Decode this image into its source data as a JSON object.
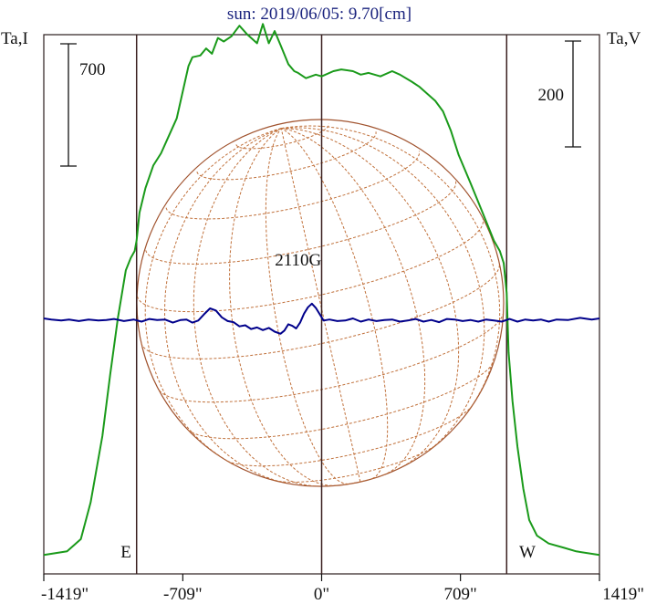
{
  "chart_data": {
    "type": "line",
    "title": "sun: 2019/06/05: 9.70[cm]",
    "left_axis_label": "Ta,I",
    "right_axis_label": "Ta,V",
    "x_unit": "arcsec",
    "xlim": [
      -1419,
      1419
    ],
    "x_ticks": [
      -1419,
      -709,
      0,
      709,
      1419
    ],
    "x_tick_labels": [
      "-1419\"",
      "-709\"",
      "0\"",
      "709\"",
      "1419\""
    ],
    "limb_labels": [
      "E",
      "W"
    ],
    "limb_positions": [
      -945,
      945
    ],
    "scale_bars": [
      {
        "label": "700",
        "side": "left",
        "value": 700
      },
      {
        "label": "200",
        "side": "right",
        "value": 200
      }
    ],
    "annotations": [
      {
        "text": "2110G",
        "x": -120
      }
    ],
    "colors": {
      "title": "#1a237e",
      "intensity": "#1a9a1a",
      "polarization": "#00008b",
      "disk": "#a0522d",
      "frame": "#2b1d1d",
      "limb_lines": "#3a2020"
    },
    "series": [
      {
        "name": "I",
        "axis": "left",
        "x": [
          -1419,
          -1300,
          -1230,
          -1180,
          -1120,
          -1080,
          -1040,
          -1000,
          -975,
          -955,
          -945,
          -930,
          -900,
          -860,
          -820,
          -780,
          -740,
          -700,
          -680,
          -660,
          -620,
          -590,
          -560,
          -530,
          -500,
          -460,
          -420,
          -380,
          -330,
          -300,
          -270,
          -240,
          -210,
          -170,
          -140,
          -120,
          -80,
          -30,
          0,
          60,
          100,
          160,
          200,
          240,
          300,
          360,
          400,
          460,
          500,
          540,
          580,
          620,
          660,
          700,
          760,
          800,
          840,
          880,
          910,
          930,
          945,
          955,
          975,
          1000,
          1030,
          1060,
          1100,
          1160,
          1240,
          1300,
          1419
        ],
        "y": [
          20,
          40,
          110,
          320,
          700,
          1050,
          1380,
          1650,
          1720,
          1760,
          1820,
          1980,
          2120,
          2250,
          2320,
          2420,
          2520,
          2720,
          2820,
          2870,
          2880,
          2920,
          2890,
          2980,
          2960,
          2990,
          3050,
          3000,
          2950,
          3060,
          2950,
          3020,
          2940,
          2830,
          2790,
          2780,
          2750,
          2770,
          2760,
          2790,
          2800,
          2790,
          2770,
          2780,
          2760,
          2790,
          2770,
          2730,
          2700,
          2660,
          2620,
          2560,
          2450,
          2310,
          2150,
          2040,
          1930,
          1820,
          1760,
          1690,
          1520,
          1180,
          900,
          640,
          400,
          220,
          130,
          85,
          60,
          40,
          20
        ]
      },
      {
        "name": "V",
        "axis": "right",
        "x": [
          -1419,
          -1380,
          -1330,
          -1290,
          -1240,
          -1190,
          -1140,
          -1100,
          -1060,
          -1010,
          -960,
          -920,
          -880,
          -840,
          -800,
          -760,
          -720,
          -690,
          -660,
          -630,
          -600,
          -570,
          -540,
          -510,
          -480,
          -450,
          -420,
          -390,
          -360,
          -330,
          -300,
          -270,
          -240,
          -210,
          -190,
          -170,
          -150,
          -130,
          -110,
          -90,
          -70,
          -50,
          -30,
          -10,
          10,
          40,
          80,
          120,
          160,
          200,
          240,
          280,
          320,
          360,
          400,
          440,
          480,
          520,
          560,
          600,
          640,
          680,
          720,
          760,
          800,
          840,
          880,
          920,
          960,
          1000,
          1040,
          1080,
          1120,
          1160,
          1200,
          1260,
          1320,
          1380,
          1419
        ],
        "y": [
          0,
          -2,
          -4,
          -2,
          -5,
          -2,
          -4,
          -3,
          -1,
          -5,
          -2,
          -6,
          -1,
          -3,
          -2,
          -8,
          -3,
          -2,
          -8,
          -4,
          8,
          19,
          15,
          2,
          -5,
          -7,
          -15,
          -13,
          -20,
          -17,
          -22,
          -18,
          -25,
          -29,
          -23,
          -11,
          -14,
          -19,
          -8,
          9,
          21,
          28,
          20,
          8,
          -4,
          -2,
          -5,
          -4,
          0,
          -6,
          -2,
          -5,
          -3,
          -2,
          -6,
          -4,
          -1,
          -6,
          -3,
          -7,
          -1,
          -2,
          -5,
          -3,
          -6,
          -2,
          -4,
          -6,
          -1,
          -6,
          -2,
          -4,
          -2,
          -6,
          -2,
          -3,
          1,
          -2,
          0
        ]
      }
    ]
  }
}
